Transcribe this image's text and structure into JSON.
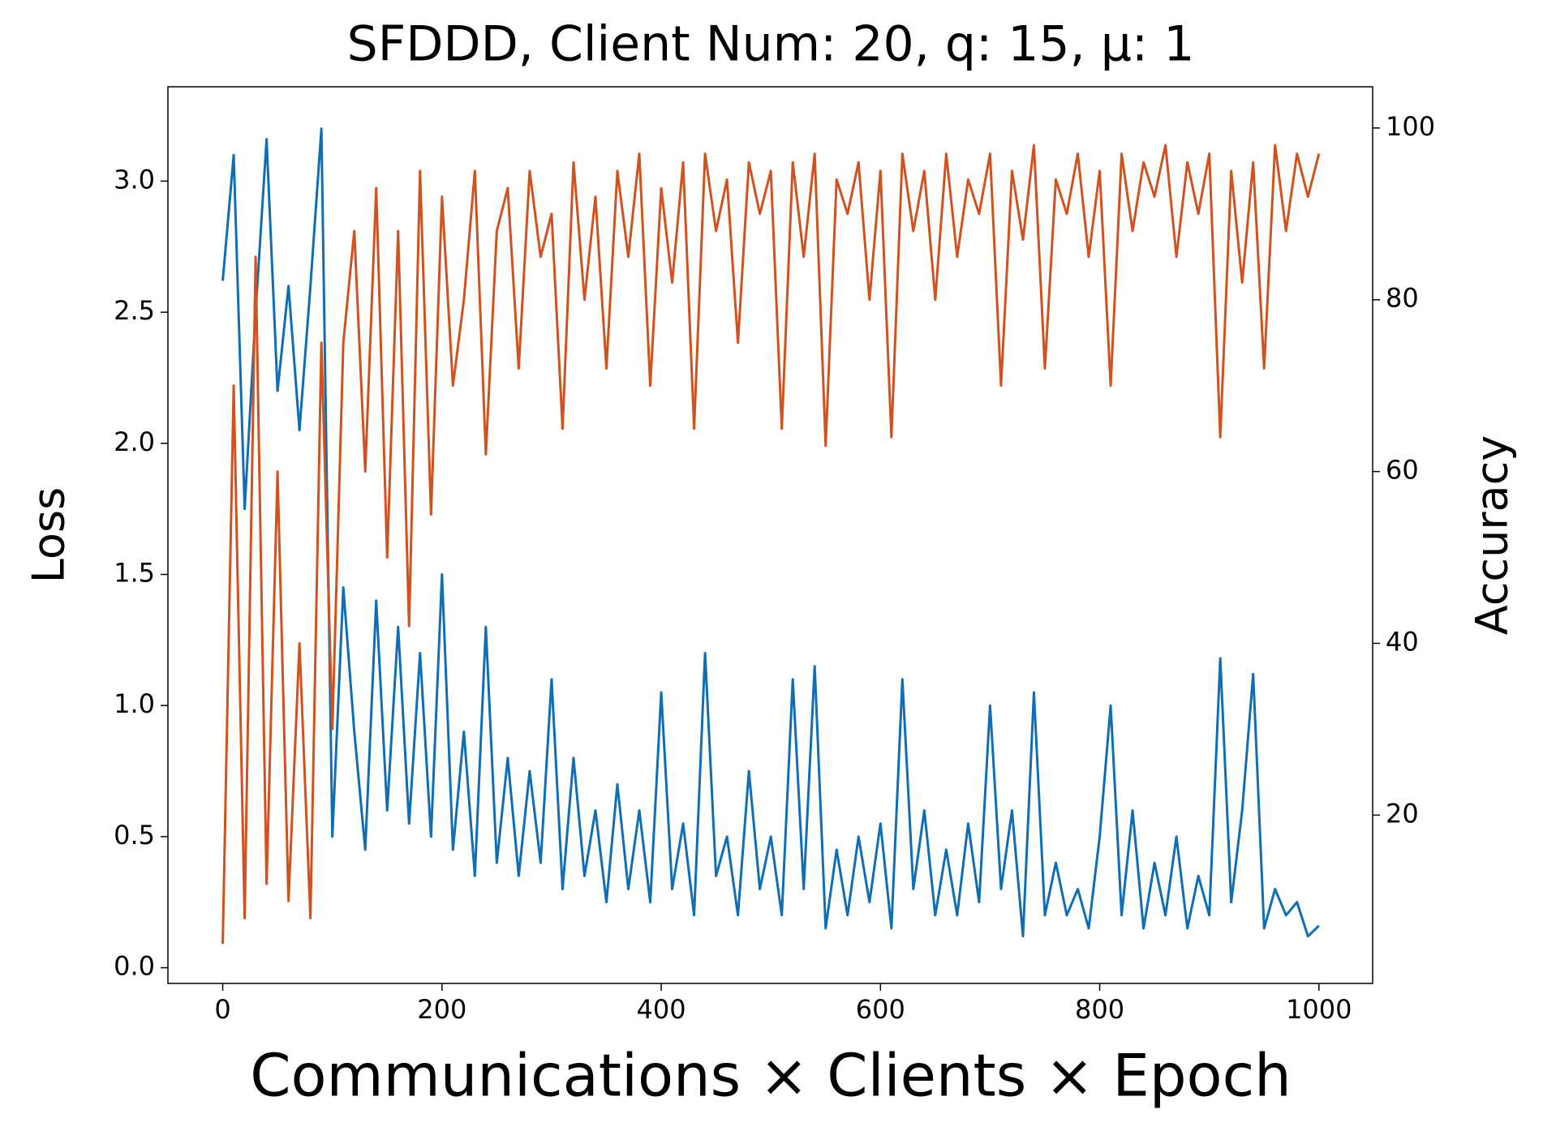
{
  "chart_data": {
    "type": "line",
    "title": "SFDDD, Client Num: 20, q: 15, μ: 1",
    "xlabel": "Communications × Clients × Epoch",
    "ylabel": "Loss",
    "y2label": "Accuracy",
    "x": [
      0,
      10,
      20,
      30,
      40,
      50,
      60,
      70,
      80,
      90,
      100,
      110,
      120,
      130,
      140,
      150,
      160,
      170,
      180,
      190,
      200,
      210,
      220,
      230,
      240,
      250,
      260,
      270,
      280,
      290,
      300,
      310,
      320,
      330,
      340,
      350,
      360,
      370,
      380,
      390,
      400,
      410,
      420,
      430,
      440,
      450,
      460,
      470,
      480,
      490,
      500,
      510,
      520,
      530,
      540,
      550,
      560,
      570,
      580,
      590,
      600,
      610,
      620,
      630,
      640,
      650,
      660,
      670,
      680,
      690,
      700,
      710,
      720,
      730,
      740,
      750,
      760,
      770,
      780,
      790,
      800,
      810,
      820,
      830,
      840,
      850,
      860,
      870,
      880,
      890,
      900,
      910,
      920,
      930,
      940,
      950,
      960,
      970,
      980,
      990,
      1000
    ],
    "series": [
      {
        "name": "Loss",
        "color": "#0f6eb4",
        "axis": "y",
        "values": [
          2.62,
          3.1,
          1.75,
          2.5,
          3.16,
          2.2,
          2.6,
          2.05,
          2.6,
          3.2,
          0.5,
          1.45,
          0.9,
          0.45,
          1.4,
          0.6,
          1.3,
          0.55,
          1.2,
          0.5,
          1.5,
          0.45,
          0.9,
          0.35,
          1.3,
          0.4,
          0.8,
          0.35,
          0.75,
          0.4,
          1.1,
          0.3,
          0.8,
          0.35,
          0.6,
          0.25,
          0.7,
          0.3,
          0.6,
          0.25,
          1.05,
          0.3,
          0.55,
          0.2,
          1.2,
          0.35,
          0.5,
          0.2,
          0.75,
          0.3,
          0.5,
          0.2,
          1.1,
          0.3,
          1.15,
          0.15,
          0.45,
          0.2,
          0.5,
          0.25,
          0.55,
          0.15,
          1.1,
          0.3,
          0.6,
          0.2,
          0.45,
          0.2,
          0.55,
          0.25,
          1.0,
          0.3,
          0.6,
          0.12,
          1.05,
          0.2,
          0.4,
          0.2,
          0.3,
          0.15,
          0.5,
          1.0,
          0.2,
          0.6,
          0.15,
          0.4,
          0.2,
          0.5,
          0.15,
          0.35,
          0.2,
          1.18,
          0.25,
          0.6,
          1.12,
          0.15,
          0.3,
          0.2,
          0.25,
          0.12,
          0.16
        ]
      },
      {
        "name": "Accuracy",
        "color": "#d1521f",
        "axis": "y2",
        "values": [
          5,
          70,
          8,
          85,
          12,
          60,
          10,
          40,
          8,
          75,
          30,
          75,
          88,
          60,
          93,
          50,
          88,
          42,
          95,
          55,
          92,
          70,
          80,
          95,
          62,
          88,
          93,
          72,
          95,
          85,
          90,
          65,
          96,
          80,
          92,
          72,
          95,
          85,
          97,
          70,
          93,
          82,
          96,
          65,
          97,
          88,
          94,
          75,
          96,
          90,
          95,
          65,
          96,
          85,
          97,
          63,
          94,
          90,
          96,
          80,
          95,
          64,
          97,
          88,
          95,
          80,
          97,
          85,
          94,
          90,
          97,
          70,
          95,
          87,
          98,
          72,
          94,
          90,
          97,
          85,
          95,
          70,
          97,
          88,
          96,
          92,
          98,
          85,
          96,
          90,
          97,
          64,
          95,
          82,
          96,
          72,
          98,
          88,
          97,
          92,
          97
        ]
      }
    ],
    "xlim": [
      -50,
      1049
    ],
    "xticks": [
      0,
      200,
      400,
      600,
      800,
      1000
    ],
    "ylim": [
      -0.06,
      3.36
    ],
    "yticks": [
      {
        "value": 0,
        "label": "0.0"
      },
      0.5,
      {
        "value": 1,
        "label": "1.0"
      },
      1.5,
      {
        "value": 2,
        "label": "2.0"
      },
      2.5,
      {
        "value": 3,
        "label": "3.0"
      }
    ],
    "y2lim": [
      0.4,
      104.8
    ],
    "y2ticks": [
      20,
      40,
      60,
      80,
      100
    ],
    "grid": false
  }
}
